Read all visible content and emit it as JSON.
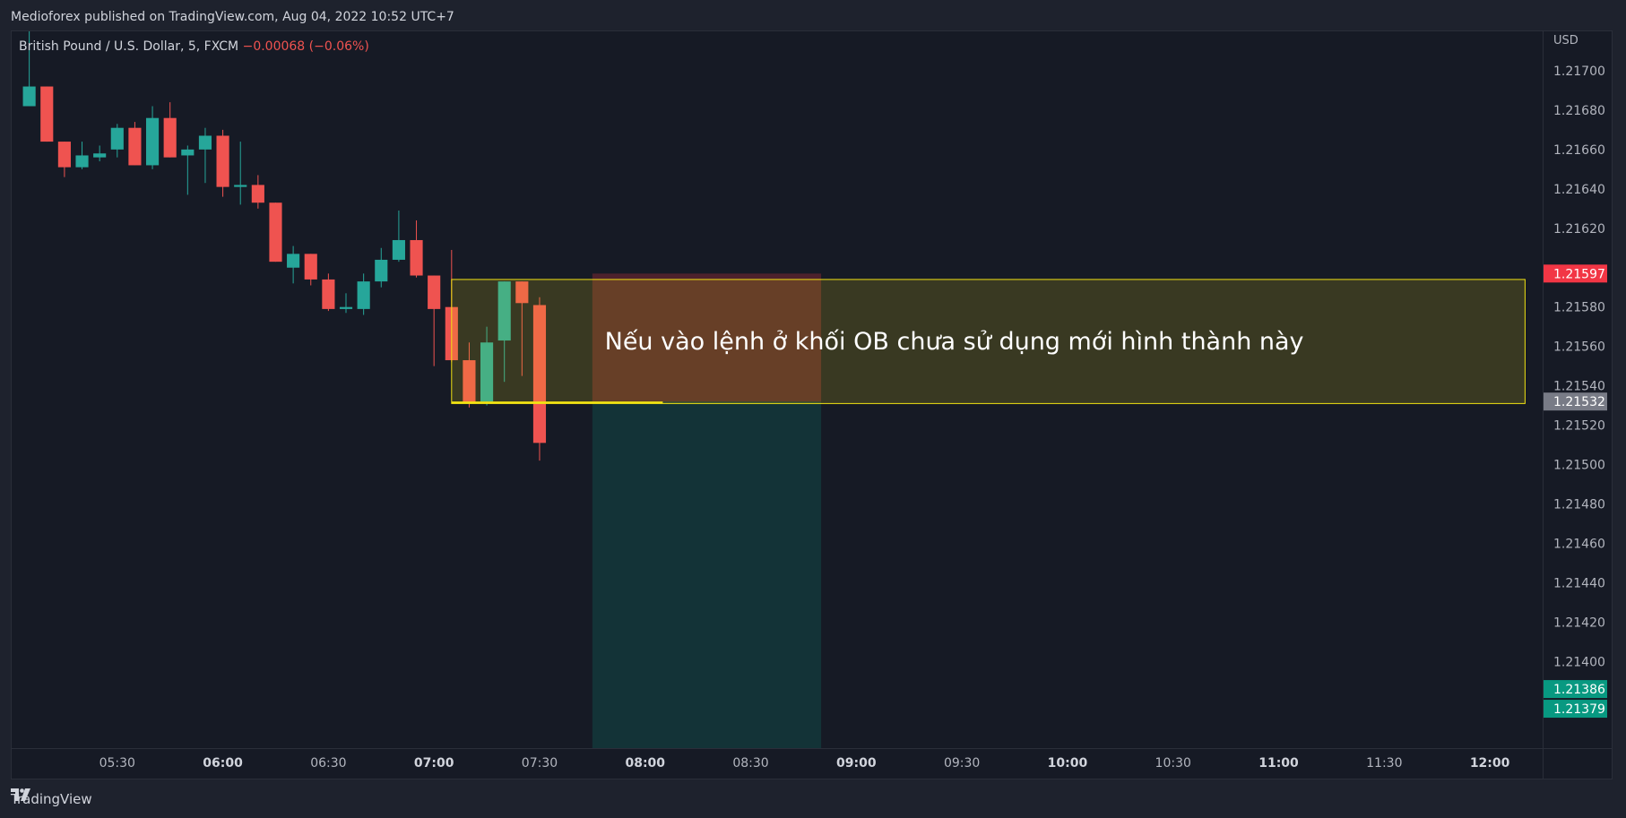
{
  "publisher_line": "Medioforex published on TradingView.com, Aug 04, 2022 10:52 UTC+7",
  "brand": "TradingView",
  "colors": {
    "up": "#26a69a",
    "down": "#ef5350",
    "zone_border": "#f2e313",
    "price_tag_down": "#f23645",
    "price_tag_grey": "#787b86",
    "price_tag_up": "#089981"
  },
  "chart_data": {
    "type": "candlestick",
    "title": "British Pound / U.S. Dollar, 5, FXCM",
    "change_text": "−0.00068 (−0.06%)",
    "currency_label": "USD",
    "ylim": [
      1.21356,
      1.2172
    ],
    "y_ticks": [
      "1.21700",
      "1.21680",
      "1.21660",
      "1.21640",
      "1.21620",
      "1.21580",
      "1.21560",
      "1.21540",
      "1.21520",
      "1.21500",
      "1.21480",
      "1.21460",
      "1.21440",
      "1.21420",
      "1.21400"
    ],
    "x_ticks": [
      {
        "label": "05:30",
        "bold": false
      },
      {
        "label": "06:00",
        "bold": true
      },
      {
        "label": "06:30",
        "bold": false
      },
      {
        "label": "07:00",
        "bold": true
      },
      {
        "label": "07:30",
        "bold": false
      },
      {
        "label": "08:00",
        "bold": true
      },
      {
        "label": "08:30",
        "bold": false
      },
      {
        "label": "09:00",
        "bold": true
      },
      {
        "label": "09:30",
        "bold": false
      },
      {
        "label": "10:00",
        "bold": true
      },
      {
        "label": "10:30",
        "bold": false
      },
      {
        "label": "11:00",
        "bold": true
      },
      {
        "label": "11:30",
        "bold": false
      },
      {
        "label": "12:00",
        "bold": true
      }
    ],
    "x_range_minutes": [
      300,
      735
    ],
    "candles": [
      {
        "t": "05:05",
        "o": 1.21682,
        "h": 1.2173,
        "l": 1.21682,
        "c": 1.21692
      },
      {
        "t": "05:10",
        "o": 1.21692,
        "h": 1.21692,
        "l": 1.21664,
        "c": 1.21664
      },
      {
        "t": "05:15",
        "o": 1.21664,
        "h": 1.21664,
        "l": 1.21646,
        "c": 1.21651
      },
      {
        "t": "05:20",
        "o": 1.21651,
        "h": 1.21664,
        "l": 1.2165,
        "c": 1.21657
      },
      {
        "t": "05:25",
        "o": 1.21656,
        "h": 1.21662,
        "l": 1.21654,
        "c": 1.21658
      },
      {
        "t": "05:30",
        "o": 1.2166,
        "h": 1.21673,
        "l": 1.21656,
        "c": 1.21671
      },
      {
        "t": "05:35",
        "o": 1.21671,
        "h": 1.21674,
        "l": 1.21652,
        "c": 1.21652
      },
      {
        "t": "05:40",
        "o": 1.21652,
        "h": 1.21682,
        "l": 1.2165,
        "c": 1.21676
      },
      {
        "t": "05:45",
        "o": 1.21676,
        "h": 1.21684,
        "l": 1.21656,
        "c": 1.21656
      },
      {
        "t": "05:50",
        "o": 1.21657,
        "h": 1.21662,
        "l": 1.21637,
        "c": 1.2166
      },
      {
        "t": "05:55",
        "o": 1.2166,
        "h": 1.21671,
        "l": 1.21643,
        "c": 1.21667
      },
      {
        "t": "06:00",
        "o": 1.21667,
        "h": 1.2167,
        "l": 1.21636,
        "c": 1.21641
      },
      {
        "t": "06:05",
        "o": 1.21641,
        "h": 1.21664,
        "l": 1.21632,
        "c": 1.21642
      },
      {
        "t": "06:10",
        "o": 1.21642,
        "h": 1.21647,
        "l": 1.2163,
        "c": 1.21633
      },
      {
        "t": "06:15",
        "o": 1.21633,
        "h": 1.21633,
        "l": 1.21603,
        "c": 1.21603
      },
      {
        "t": "06:20",
        "o": 1.216,
        "h": 1.21611,
        "l": 1.21592,
        "c": 1.21607
      },
      {
        "t": "06:25",
        "o": 1.21607,
        "h": 1.21607,
        "l": 1.21591,
        "c": 1.21594
      },
      {
        "t": "06:30",
        "o": 1.21594,
        "h": 1.21597,
        "l": 1.21578,
        "c": 1.21579
      },
      {
        "t": "06:35",
        "o": 1.21579,
        "h": 1.21587,
        "l": 1.21577,
        "c": 1.2158
      },
      {
        "t": "06:40",
        "o": 1.21579,
        "h": 1.21597,
        "l": 1.21576,
        "c": 1.21593
      },
      {
        "t": "06:45",
        "o": 1.21593,
        "h": 1.2161,
        "l": 1.2159,
        "c": 1.21604
      },
      {
        "t": "06:50",
        "o": 1.21604,
        "h": 1.21629,
        "l": 1.21603,
        "c": 1.21614
      },
      {
        "t": "06:55",
        "o": 1.21614,
        "h": 1.21624,
        "l": 1.21595,
        "c": 1.21596
      },
      {
        "t": "07:00",
        "o": 1.21596,
        "h": 1.21596,
        "l": 1.2155,
        "c": 1.21579
      },
      {
        "t": "07:05",
        "o": 1.2158,
        "h": 1.21609,
        "l": 1.21552,
        "c": 1.21553
      },
      {
        "t": "07:10",
        "o": 1.21553,
        "h": 1.21562,
        "l": 1.21529,
        "c": 1.21531
      },
      {
        "t": "07:15",
        "o": 1.21532,
        "h": 1.2157,
        "l": 1.2153,
        "c": 1.21562
      },
      {
        "t": "07:20",
        "o": 1.21563,
        "h": 1.21593,
        "l": 1.21542,
        "c": 1.21593
      },
      {
        "t": "07:25",
        "o": 1.21593,
        "h": 1.21593,
        "l": 1.21545,
        "c": 1.21582
      },
      {
        "t": "07:30",
        "o": 1.21581,
        "h": 1.21585,
        "l": 1.21502,
        "c": 1.21511
      }
    ],
    "ob_zone": {
      "t_start": "07:05",
      "t_end": "12:10",
      "top": 1.21594,
      "bottom": 1.21531
    },
    "ob_zone_label": "Nếu vào lệnh ở khối OB chưa sử dụng mới hình thành này",
    "position": {
      "t_start": "07:45",
      "t_end": "08:50",
      "entry": 1.21532,
      "stop": 1.21597,
      "target": 1.21357
    },
    "price_labels": [
      {
        "value": "1.21597",
        "price": 1.21597,
        "style": "down"
      },
      {
        "value": "1.21532",
        "price": 1.21532,
        "style": "grey"
      },
      {
        "value": "1.21386",
        "price": 1.21386,
        "style": "up"
      },
      {
        "value": "1.21379",
        "price": 1.21376,
        "style": "up"
      }
    ]
  }
}
